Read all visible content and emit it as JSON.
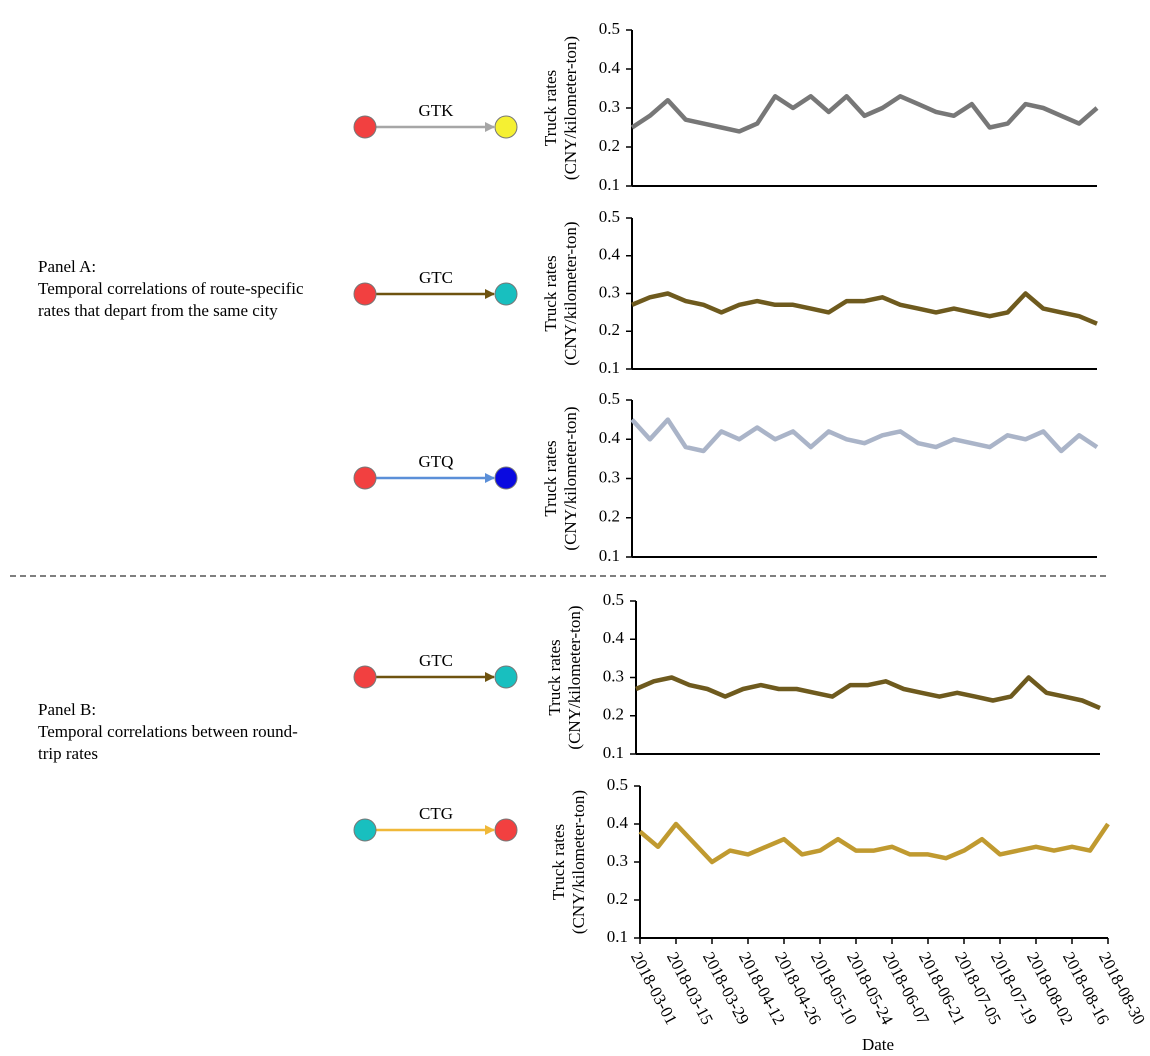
{
  "panels": [
    {
      "title": "Panel A:",
      "lines": [
        "Temporal correlations of route-specific",
        "rates that depart from the same city"
      ]
    },
    {
      "title": "Panel B:",
      "lines": [
        "Temporal correlations between round-",
        "trip rates"
      ]
    }
  ],
  "routes": [
    {
      "label": "GTK",
      "from_color": "#f24040",
      "to_color": "#f5f032",
      "arrow_color": "#a6a6a6"
    },
    {
      "label": "GTC",
      "from_color": "#f24040",
      "to_color": "#18bfbf",
      "arrow_color": "#6e5310"
    },
    {
      "label": "GTQ",
      "from_color": "#f24040",
      "to_color": "#0a0ae0",
      "arrow_color": "#5b8fd8"
    },
    {
      "label": "GTC",
      "from_color": "#f24040",
      "to_color": "#18bfbf",
      "arrow_color": "#6e5310"
    },
    {
      "label": "CTG",
      "from_color": "#18bfbf",
      "to_color": "#f24040",
      "arrow_color": "#f0b838"
    }
  ],
  "chart_data": [
    {
      "type": "line",
      "ylabel": [
        "Truck rates",
        "(CNY/kilometer-ton)"
      ],
      "color": "#777777",
      "x": [
        "2018-03-01",
        "2018-03-08",
        "2018-03-15",
        "2018-03-22",
        "2018-03-29",
        "2018-04-05",
        "2018-04-12",
        "2018-04-19",
        "2018-04-26",
        "2018-05-03",
        "2018-05-10",
        "2018-05-17",
        "2018-05-24",
        "2018-05-31",
        "2018-06-07",
        "2018-06-14",
        "2018-06-21",
        "2018-06-28",
        "2018-07-05",
        "2018-07-12",
        "2018-07-19",
        "2018-07-26",
        "2018-08-02",
        "2018-08-09",
        "2018-08-16",
        "2018-08-23",
        "2018-08-30"
      ],
      "values": [
        0.25,
        0.28,
        0.32,
        0.27,
        0.26,
        0.25,
        0.24,
        0.26,
        0.33,
        0.3,
        0.33,
        0.29,
        0.33,
        0.28,
        0.3,
        0.33,
        0.31,
        0.29,
        0.28,
        0.31,
        0.25,
        0.26,
        0.31,
        0.3,
        0.28,
        0.26,
        0.3
      ],
      "xlim": [
        "2018-03-01",
        "2018-08-30"
      ],
      "ylim": [
        0.1,
        0.5
      ],
      "yticks": [
        0.1,
        0.2,
        0.3,
        0.4,
        0.5
      ]
    },
    {
      "type": "line",
      "ylabel": [
        "Truck rates",
        "(CNY/kilometer-ton)"
      ],
      "color": "#6e5a1e",
      "x": [
        "2018-03-01",
        "2018-03-08",
        "2018-03-15",
        "2018-03-22",
        "2018-03-29",
        "2018-04-05",
        "2018-04-12",
        "2018-04-19",
        "2018-04-26",
        "2018-05-03",
        "2018-05-10",
        "2018-05-17",
        "2018-05-24",
        "2018-05-31",
        "2018-06-07",
        "2018-06-14",
        "2018-06-21",
        "2018-06-28",
        "2018-07-05",
        "2018-07-12",
        "2018-07-19",
        "2018-07-26",
        "2018-08-02",
        "2018-08-09",
        "2018-08-16",
        "2018-08-23",
        "2018-08-30"
      ],
      "values": [
        0.27,
        0.29,
        0.3,
        0.28,
        0.27,
        0.25,
        0.27,
        0.28,
        0.27,
        0.27,
        0.26,
        0.25,
        0.28,
        0.28,
        0.29,
        0.27,
        0.26,
        0.25,
        0.26,
        0.25,
        0.24,
        0.25,
        0.3,
        0.26,
        0.25,
        0.24,
        0.22
      ],
      "xlim": [
        "2018-03-01",
        "2018-08-30"
      ],
      "ylim": [
        0.1,
        0.5
      ],
      "yticks": [
        0.1,
        0.2,
        0.3,
        0.4,
        0.5
      ]
    },
    {
      "type": "line",
      "ylabel": [
        "Truck rates",
        "(CNY/kilometer-ton)"
      ],
      "color": "#aab4c8",
      "x": [
        "2018-03-01",
        "2018-03-08",
        "2018-03-15",
        "2018-03-22",
        "2018-03-29",
        "2018-04-05",
        "2018-04-12",
        "2018-04-19",
        "2018-04-26",
        "2018-05-03",
        "2018-05-10",
        "2018-05-17",
        "2018-05-24",
        "2018-05-31",
        "2018-06-07",
        "2018-06-14",
        "2018-06-21",
        "2018-06-28",
        "2018-07-05",
        "2018-07-12",
        "2018-07-19",
        "2018-07-26",
        "2018-08-02",
        "2018-08-09",
        "2018-08-16",
        "2018-08-23",
        "2018-08-30"
      ],
      "values": [
        0.45,
        0.4,
        0.45,
        0.38,
        0.37,
        0.42,
        0.4,
        0.43,
        0.4,
        0.42,
        0.38,
        0.42,
        0.4,
        0.39,
        0.41,
        0.42,
        0.39,
        0.38,
        0.4,
        0.39,
        0.38,
        0.41,
        0.4,
        0.42,
        0.37,
        0.41,
        0.38
      ],
      "xlim": [
        "2018-03-01",
        "2018-08-30"
      ],
      "ylim": [
        0.1,
        0.5
      ],
      "yticks": [
        0.1,
        0.2,
        0.3,
        0.4,
        0.5
      ]
    },
    {
      "type": "line",
      "ylabel": [
        "Truck rates",
        "(CNY/kilometer-ton)"
      ],
      "color": "#6e5a1e",
      "x": [
        "2018-03-01",
        "2018-03-08",
        "2018-03-15",
        "2018-03-22",
        "2018-03-29",
        "2018-04-05",
        "2018-04-12",
        "2018-04-19",
        "2018-04-26",
        "2018-05-03",
        "2018-05-10",
        "2018-05-17",
        "2018-05-24",
        "2018-05-31",
        "2018-06-07",
        "2018-06-14",
        "2018-06-21",
        "2018-06-28",
        "2018-07-05",
        "2018-07-12",
        "2018-07-19",
        "2018-07-26",
        "2018-08-02",
        "2018-08-09",
        "2018-08-16",
        "2018-08-23",
        "2018-08-30"
      ],
      "values": [
        0.27,
        0.29,
        0.3,
        0.28,
        0.27,
        0.25,
        0.27,
        0.28,
        0.27,
        0.27,
        0.26,
        0.25,
        0.28,
        0.28,
        0.29,
        0.27,
        0.26,
        0.25,
        0.26,
        0.25,
        0.24,
        0.25,
        0.3,
        0.26,
        0.25,
        0.24,
        0.22
      ],
      "xlim": [
        "2018-03-01",
        "2018-08-30"
      ],
      "ylim": [
        0.1,
        0.5
      ],
      "yticks": [
        0.1,
        0.2,
        0.3,
        0.4,
        0.5
      ]
    },
    {
      "type": "line",
      "ylabel": [
        "Truck rates",
        "(CNY/kilometer-ton)"
      ],
      "xlabel": "Date",
      "color": "#c09a30",
      "x": [
        "2018-03-01",
        "2018-03-08",
        "2018-03-15",
        "2018-03-22",
        "2018-03-29",
        "2018-04-05",
        "2018-04-12",
        "2018-04-19",
        "2018-04-26",
        "2018-05-03",
        "2018-05-10",
        "2018-05-17",
        "2018-05-24",
        "2018-05-31",
        "2018-06-07",
        "2018-06-14",
        "2018-06-21",
        "2018-06-28",
        "2018-07-05",
        "2018-07-12",
        "2018-07-19",
        "2018-07-26",
        "2018-08-02",
        "2018-08-09",
        "2018-08-16",
        "2018-08-23",
        "2018-08-30"
      ],
      "values": [
        0.38,
        0.34,
        0.4,
        0.35,
        0.3,
        0.33,
        0.32,
        0.34,
        0.36,
        0.32,
        0.33,
        0.36,
        0.33,
        0.33,
        0.34,
        0.32,
        0.32,
        0.31,
        0.33,
        0.36,
        0.32,
        0.33,
        0.34,
        0.33,
        0.34,
        0.33,
        0.4
      ],
      "xlim": [
        "2018-03-01",
        "2018-08-30"
      ],
      "ylim": [
        0.1,
        0.5
      ],
      "yticks": [
        0.1,
        0.2,
        0.3,
        0.4,
        0.5
      ],
      "xticks": [
        "2018-03-01",
        "2018-03-15",
        "2018-03-29",
        "2018-04-12",
        "2018-04-26",
        "2018-05-10",
        "2018-05-24",
        "2018-06-07",
        "2018-06-21",
        "2018-07-05",
        "2018-07-19",
        "2018-08-02",
        "2018-08-16",
        "2018-08-30"
      ]
    }
  ]
}
